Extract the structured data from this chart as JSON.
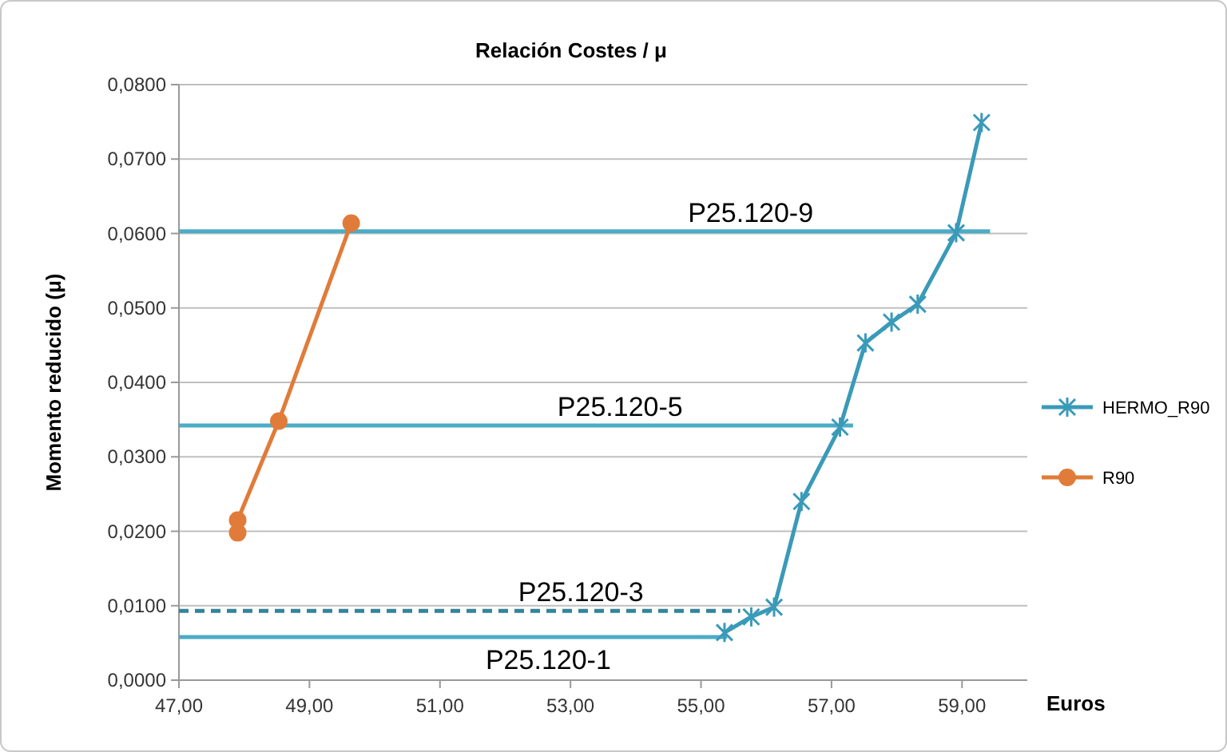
{
  "chart_data": {
    "type": "line",
    "title": "Relación Costes / μ",
    "xlabel": "Euros",
    "ylabel": "Momento reducido (μ)",
    "xlim": [
      47,
      60
    ],
    "xticks": [
      {
        "value": 47,
        "label": "47,00"
      },
      {
        "value": 49,
        "label": "49,00"
      },
      {
        "value": 51,
        "label": "51,00"
      },
      {
        "value": 53,
        "label": "53,00"
      },
      {
        "value": 55,
        "label": "55,00"
      },
      {
        "value": 57,
        "label": "57,00"
      },
      {
        "value": 59,
        "label": "59,00"
      }
    ],
    "ylim": [
      0,
      0.08
    ],
    "yticks": [
      {
        "value": 0,
        "label": "0,0000"
      },
      {
        "value": 0.01,
        "label": "0,0100"
      },
      {
        "value": 0.02,
        "label": "0,0200"
      },
      {
        "value": 0.03,
        "label": "0,0300"
      },
      {
        "value": 0.04,
        "label": "0,0400"
      },
      {
        "value": 0.05,
        "label": "0,0500"
      },
      {
        "value": 0.06,
        "label": "0,0600"
      },
      {
        "value": 0.07,
        "label": "0,0700"
      },
      {
        "value": 0.08,
        "label": "0,0800"
      }
    ],
    "grid": "y",
    "legend": "right",
    "annotations": [
      {
        "text": "P25.120-9",
        "x": 54.8,
        "y": 0.0603
      },
      {
        "text": "P25.120-5",
        "x": 52.8,
        "y": 0.0342
      },
      {
        "text": "P25.120-3",
        "x": 52.2,
        "y": 0.0093
      },
      {
        "text": "P25.120-1",
        "x": 51.7,
        "y": 0.0058
      }
    ],
    "series": [
      {
        "type": "line",
        "color": "#4bacc6",
        "marker": "none",
        "line_style": "solid",
        "x": [
          47,
          59.43
        ],
        "values": [
          0.0603,
          0.0603
        ]
      },
      {
        "type": "line",
        "color": "#4bacc6",
        "marker": "none",
        "line_style": "solid",
        "x": [
          47,
          57.33
        ],
        "values": [
          0.0342,
          0.0342
        ]
      },
      {
        "type": "line",
        "color": "#31859c",
        "marker": "none",
        "line_style": "dashed",
        "x": [
          47,
          55.6
        ],
        "values": [
          0.0093,
          0.0093
        ]
      },
      {
        "type": "line",
        "color": "#4bacc6",
        "marker": "none",
        "line_style": "solid",
        "x": [
          47,
          55.4
        ],
        "values": [
          0.0058,
          0.0058
        ]
      },
      {
        "name": "HERMO_R90",
        "type": "line",
        "color": "#3a9ab8",
        "marker": "cross",
        "line_style": "solid",
        "x": [
          55.36,
          55.77,
          56.12,
          56.54,
          57.13,
          57.52,
          57.92,
          58.32,
          58.91,
          59.3
        ],
        "values": [
          0.0064,
          0.0085,
          0.0098,
          0.024,
          0.034,
          0.0453,
          0.0481,
          0.0505,
          0.0601,
          0.0749
        ]
      },
      {
        "name": "R90",
        "type": "line",
        "color": "#e07b39",
        "marker": "circle",
        "line_style": "solid",
        "x": [
          47.9,
          47.9,
          48.53,
          49.64
        ],
        "values": [
          0.0198,
          0.0215,
          0.0348,
          0.0614
        ]
      }
    ]
  }
}
